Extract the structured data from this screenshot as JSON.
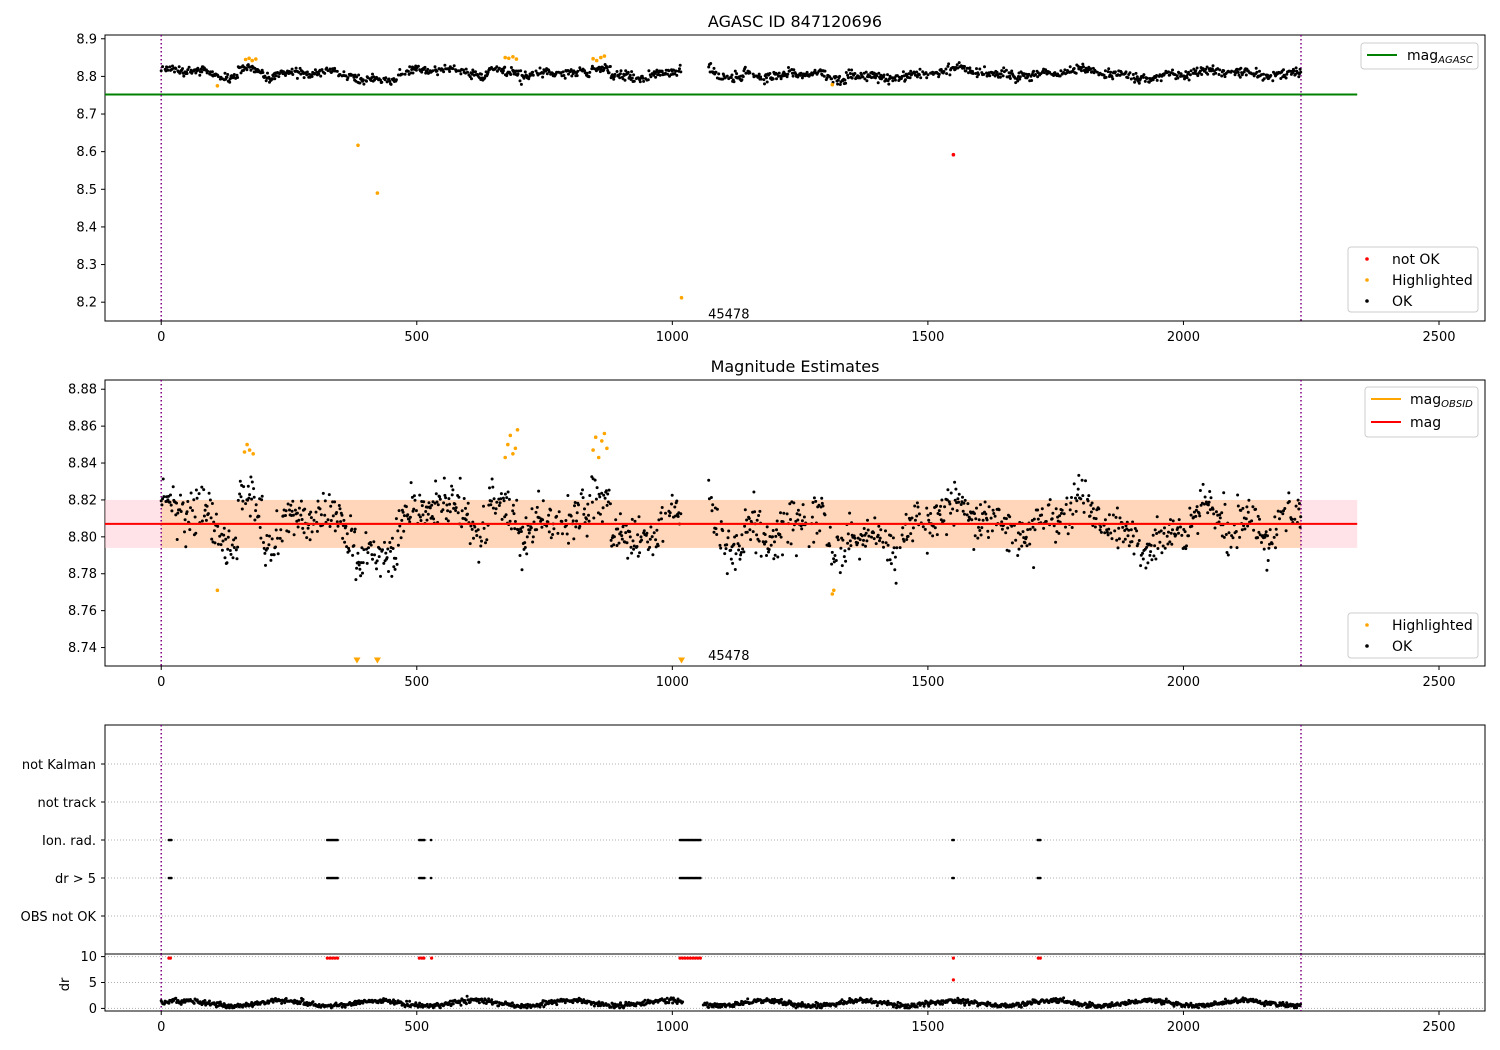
{
  "colors": {
    "ok": "#000000",
    "highlighted": "#ffa500",
    "not_ok": "#ff0000",
    "agasc_line": "#008000",
    "obsid_line": "#ffa500",
    "mag_line": "#ff0000",
    "band": "#ffc0cb",
    "vline": "#800080"
  },
  "chart_data": [
    {
      "type": "scatter",
      "title": "AGASC ID 847120696",
      "xlim": [
        -110,
        2590
      ],
      "ylim": [
        8.15,
        8.91
      ],
      "xticks": [
        0,
        500,
        1000,
        1500,
        2000,
        2500
      ],
      "yticks": [
        8.2,
        8.3,
        8.4,
        8.5,
        8.6,
        8.7,
        8.8,
        8.9
      ],
      "vlines": [
        0,
        2230
      ],
      "annotation": {
        "text": "45478",
        "x": 1070,
        "y": 8.165
      },
      "hline": {
        "name": "mag_AGASC",
        "label": "mag",
        "sub": "AGASC",
        "y": 8.752,
        "x": [
          -110,
          2340
        ]
      },
      "legend_lines": {
        "position": "upper right",
        "items": [
          {
            "label": "mag",
            "sub": "AGASC"
          }
        ]
      },
      "legend_points": {
        "position": "lower right",
        "items": [
          "not OK",
          "Highlighted",
          "OK"
        ]
      },
      "series": [
        {
          "name": "OK",
          "profile": "agasc_ok",
          "x_range": [
            0,
            2230
          ],
          "note_gap": [
            1020,
            1070
          ]
        },
        {
          "name": "Highlighted",
          "values": [
            [
              110,
              8.775
            ],
            [
              165,
              8.845
            ],
            [
              172,
              8.848
            ],
            [
              178,
              8.842
            ],
            [
              185,
              8.846
            ],
            [
              385,
              8.617
            ],
            [
              423,
              8.49
            ],
            [
              673,
              8.85
            ],
            [
              680,
              8.848
            ],
            [
              688,
              8.852
            ],
            [
              695,
              8.846
            ],
            [
              845,
              8.847
            ],
            [
              852,
              8.842
            ],
            [
              860,
              8.85
            ],
            [
              867,
              8.854
            ],
            [
              1018,
              8.212
            ],
            [
              1313,
              8.778
            ]
          ]
        },
        {
          "name": "not OK",
          "values": [
            [
              1550,
              8.592
            ]
          ]
        }
      ]
    },
    {
      "type": "scatter",
      "title": "Magnitude Estimates",
      "xlim": [
        -110,
        2590
      ],
      "ylim": [
        8.73,
        8.885
      ],
      "xticks": [
        0,
        500,
        1000,
        1500,
        2000,
        2500
      ],
      "yticks": [
        8.74,
        8.76,
        8.78,
        8.8,
        8.82,
        8.84,
        8.86,
        8.88
      ],
      "vlines": [
        0,
        2230
      ],
      "annotation": {
        "text": "45478",
        "x": 1070,
        "y": 8.735
      },
      "mag_line": {
        "y": 8.807,
        "band": [
          8.794,
          8.82
        ],
        "x": [
          -110,
          2340
        ]
      },
      "obsid_line": {
        "y": 8.807,
        "band": [
          8.794,
          8.82
        ],
        "x": [
          0,
          2230
        ]
      },
      "legend_lines": {
        "position": "upper right",
        "items": [
          {
            "label": "mag",
            "sub": "OBSID"
          },
          {
            "label": "mag",
            "sub": ""
          }
        ]
      },
      "legend_points": {
        "position": "lower right",
        "items": [
          "Highlighted",
          "OK"
        ]
      },
      "series": [
        {
          "name": "OK",
          "profile": "mag_ok",
          "x_range": [
            0,
            2230
          ]
        },
        {
          "name": "Highlighted",
          "values": [
            [
              110,
              8.771
            ],
            [
              163,
              8.846
            ],
            [
              168,
              8.85
            ],
            [
              173,
              8.847
            ],
            [
              180,
              8.845
            ],
            [
              673,
              8.843
            ],
            [
              678,
              8.85
            ],
            [
              683,
              8.855
            ],
            [
              688,
              8.845
            ],
            [
              693,
              8.848
            ],
            [
              697,
              8.858
            ],
            [
              845,
              8.847
            ],
            [
              850,
              8.854
            ],
            [
              856,
              8.843
            ],
            [
              862,
              8.852
            ],
            [
              867,
              8.856
            ],
            [
              872,
              8.848
            ],
            [
              1313,
              8.769
            ],
            [
              1316,
              8.771
            ]
          ]
        },
        {
          "name": "Highlighted (clipped)",
          "marker": "triangle-down",
          "values": [
            [
              383,
              8.733
            ],
            [
              423,
              8.733
            ],
            [
              1018,
              8.733
            ]
          ]
        }
      ]
    },
    {
      "type": "scatter",
      "title": "",
      "xlim": [
        -110,
        2590
      ],
      "categories": [
        "not Kalman",
        "not track",
        "Ion. rad.",
        "dr > 5",
        "OBS not OK"
      ],
      "vlines": [
        0,
        2230
      ],
      "flags": {
        "not Kalman": [],
        "not track": [],
        "Ion. rad.": [
          [
            15,
            20
          ],
          [
            325,
            345
          ],
          [
            505,
            515
          ],
          [
            528,
            530
          ],
          [
            1015,
            1055
          ],
          [
            1548,
            1552
          ],
          [
            1715,
            1722
          ]
        ],
        "dr > 5": [
          [
            15,
            20
          ],
          [
            325,
            345
          ],
          [
            505,
            515
          ],
          [
            528,
            530
          ],
          [
            1015,
            1055
          ],
          [
            1548,
            1552
          ],
          [
            1715,
            1722
          ]
        ],
        "OBS not OK": []
      }
    },
    {
      "type": "scatter",
      "title": "",
      "ylabel": "dr",
      "xlim": [
        -110,
        2590
      ],
      "ylim": [
        -0.5,
        10.5
      ],
      "xticks": [
        0,
        500,
        1000,
        1500,
        2000,
        2500
      ],
      "yticks": [
        0,
        5,
        10
      ],
      "vlines": [
        0,
        2230
      ],
      "series": [
        {
          "name": "OK",
          "profile": "dr_ok",
          "x_range": [
            0,
            2230
          ]
        },
        {
          "name": "not OK",
          "values": [
            [
              15,
              9.7
            ],
            [
              18,
              9.7
            ],
            [
              325,
              9.7
            ],
            [
              330,
              9.7
            ],
            [
              335,
              9.7
            ],
            [
              340,
              9.7
            ],
            [
              345,
              9.7
            ],
            [
              505,
              9.7
            ],
            [
              510,
              9.7
            ],
            [
              514,
              9.7
            ],
            [
              529,
              9.7
            ],
            [
              1015,
              9.7
            ],
            [
              1020,
              9.7
            ],
            [
              1025,
              9.7
            ],
            [
              1030,
              9.7
            ],
            [
              1035,
              9.7
            ],
            [
              1040,
              9.7
            ],
            [
              1045,
              9.7
            ],
            [
              1050,
              9.7
            ],
            [
              1055,
              9.7
            ],
            [
              1550,
              9.7
            ],
            [
              1550,
              5.5
            ],
            [
              1716,
              9.7
            ],
            [
              1720,
              9.7
            ]
          ]
        }
      ]
    }
  ]
}
